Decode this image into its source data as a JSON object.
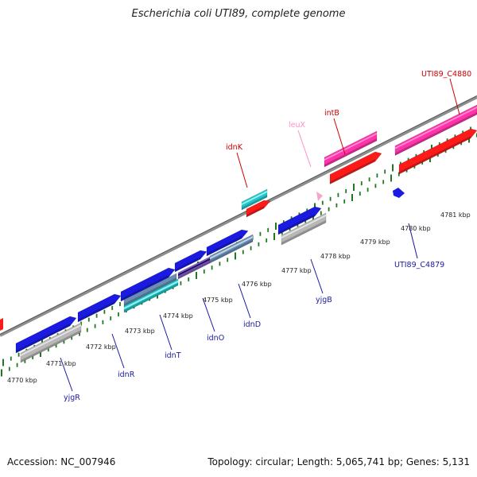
{
  "title": "Escherichia coli UTI89, complete genome",
  "footer": {
    "accession": "Accession: NC_007946",
    "summary": "Topology: circular; Length: 5,065,741 bp; Genes: 5,131"
  },
  "colors": {
    "backbone": "#8e8e8e",
    "tick": "#1f7a1f",
    "cds": "#1a1ae0",
    "cds_dark": "#0a0a80",
    "rna_pink": "#ff69b4",
    "trna": "#f2a6cc",
    "red": "#ff1a1a",
    "cyan": "#22c8cc",
    "gray": "#b8b8b8",
    "steel": "#6a8fb5",
    "purple": "#8060c0"
  },
  "kbp_labels": [
    "4770 kbp",
    "4771 kbp",
    "4772 kbp",
    "4773 kbp",
    "4774 kbp",
    "4775 kbp",
    "4776 kbp",
    "4777 kbp",
    "4778 kbp",
    "4779 kbp",
    "4780 kbp",
    "4781 kbp"
  ],
  "gene_labels": {
    "top": [
      {
        "name": "idnK",
        "color": "#cc0000"
      },
      {
        "name": "leuX",
        "color": "#ff8fc8"
      },
      {
        "name": "intB",
        "color": "#cc0000"
      },
      {
        "name": "UTI89_C4880",
        "color": "#cc0000"
      }
    ],
    "bottom": [
      {
        "name": "yjgR",
        "color": "#1a1aa0"
      },
      {
        "name": "idnR",
        "color": "#1a1aa0"
      },
      {
        "name": "idnT",
        "color": "#1a1aa0"
      },
      {
        "name": "idnO",
        "color": "#1a1aa0"
      },
      {
        "name": "idnD",
        "color": "#1a1aa0"
      },
      {
        "name": "yjgB",
        "color": "#1a1aa0"
      },
      {
        "name": "UTI89_C4879",
        "color": "#1a1aa0"
      }
    ]
  }
}
